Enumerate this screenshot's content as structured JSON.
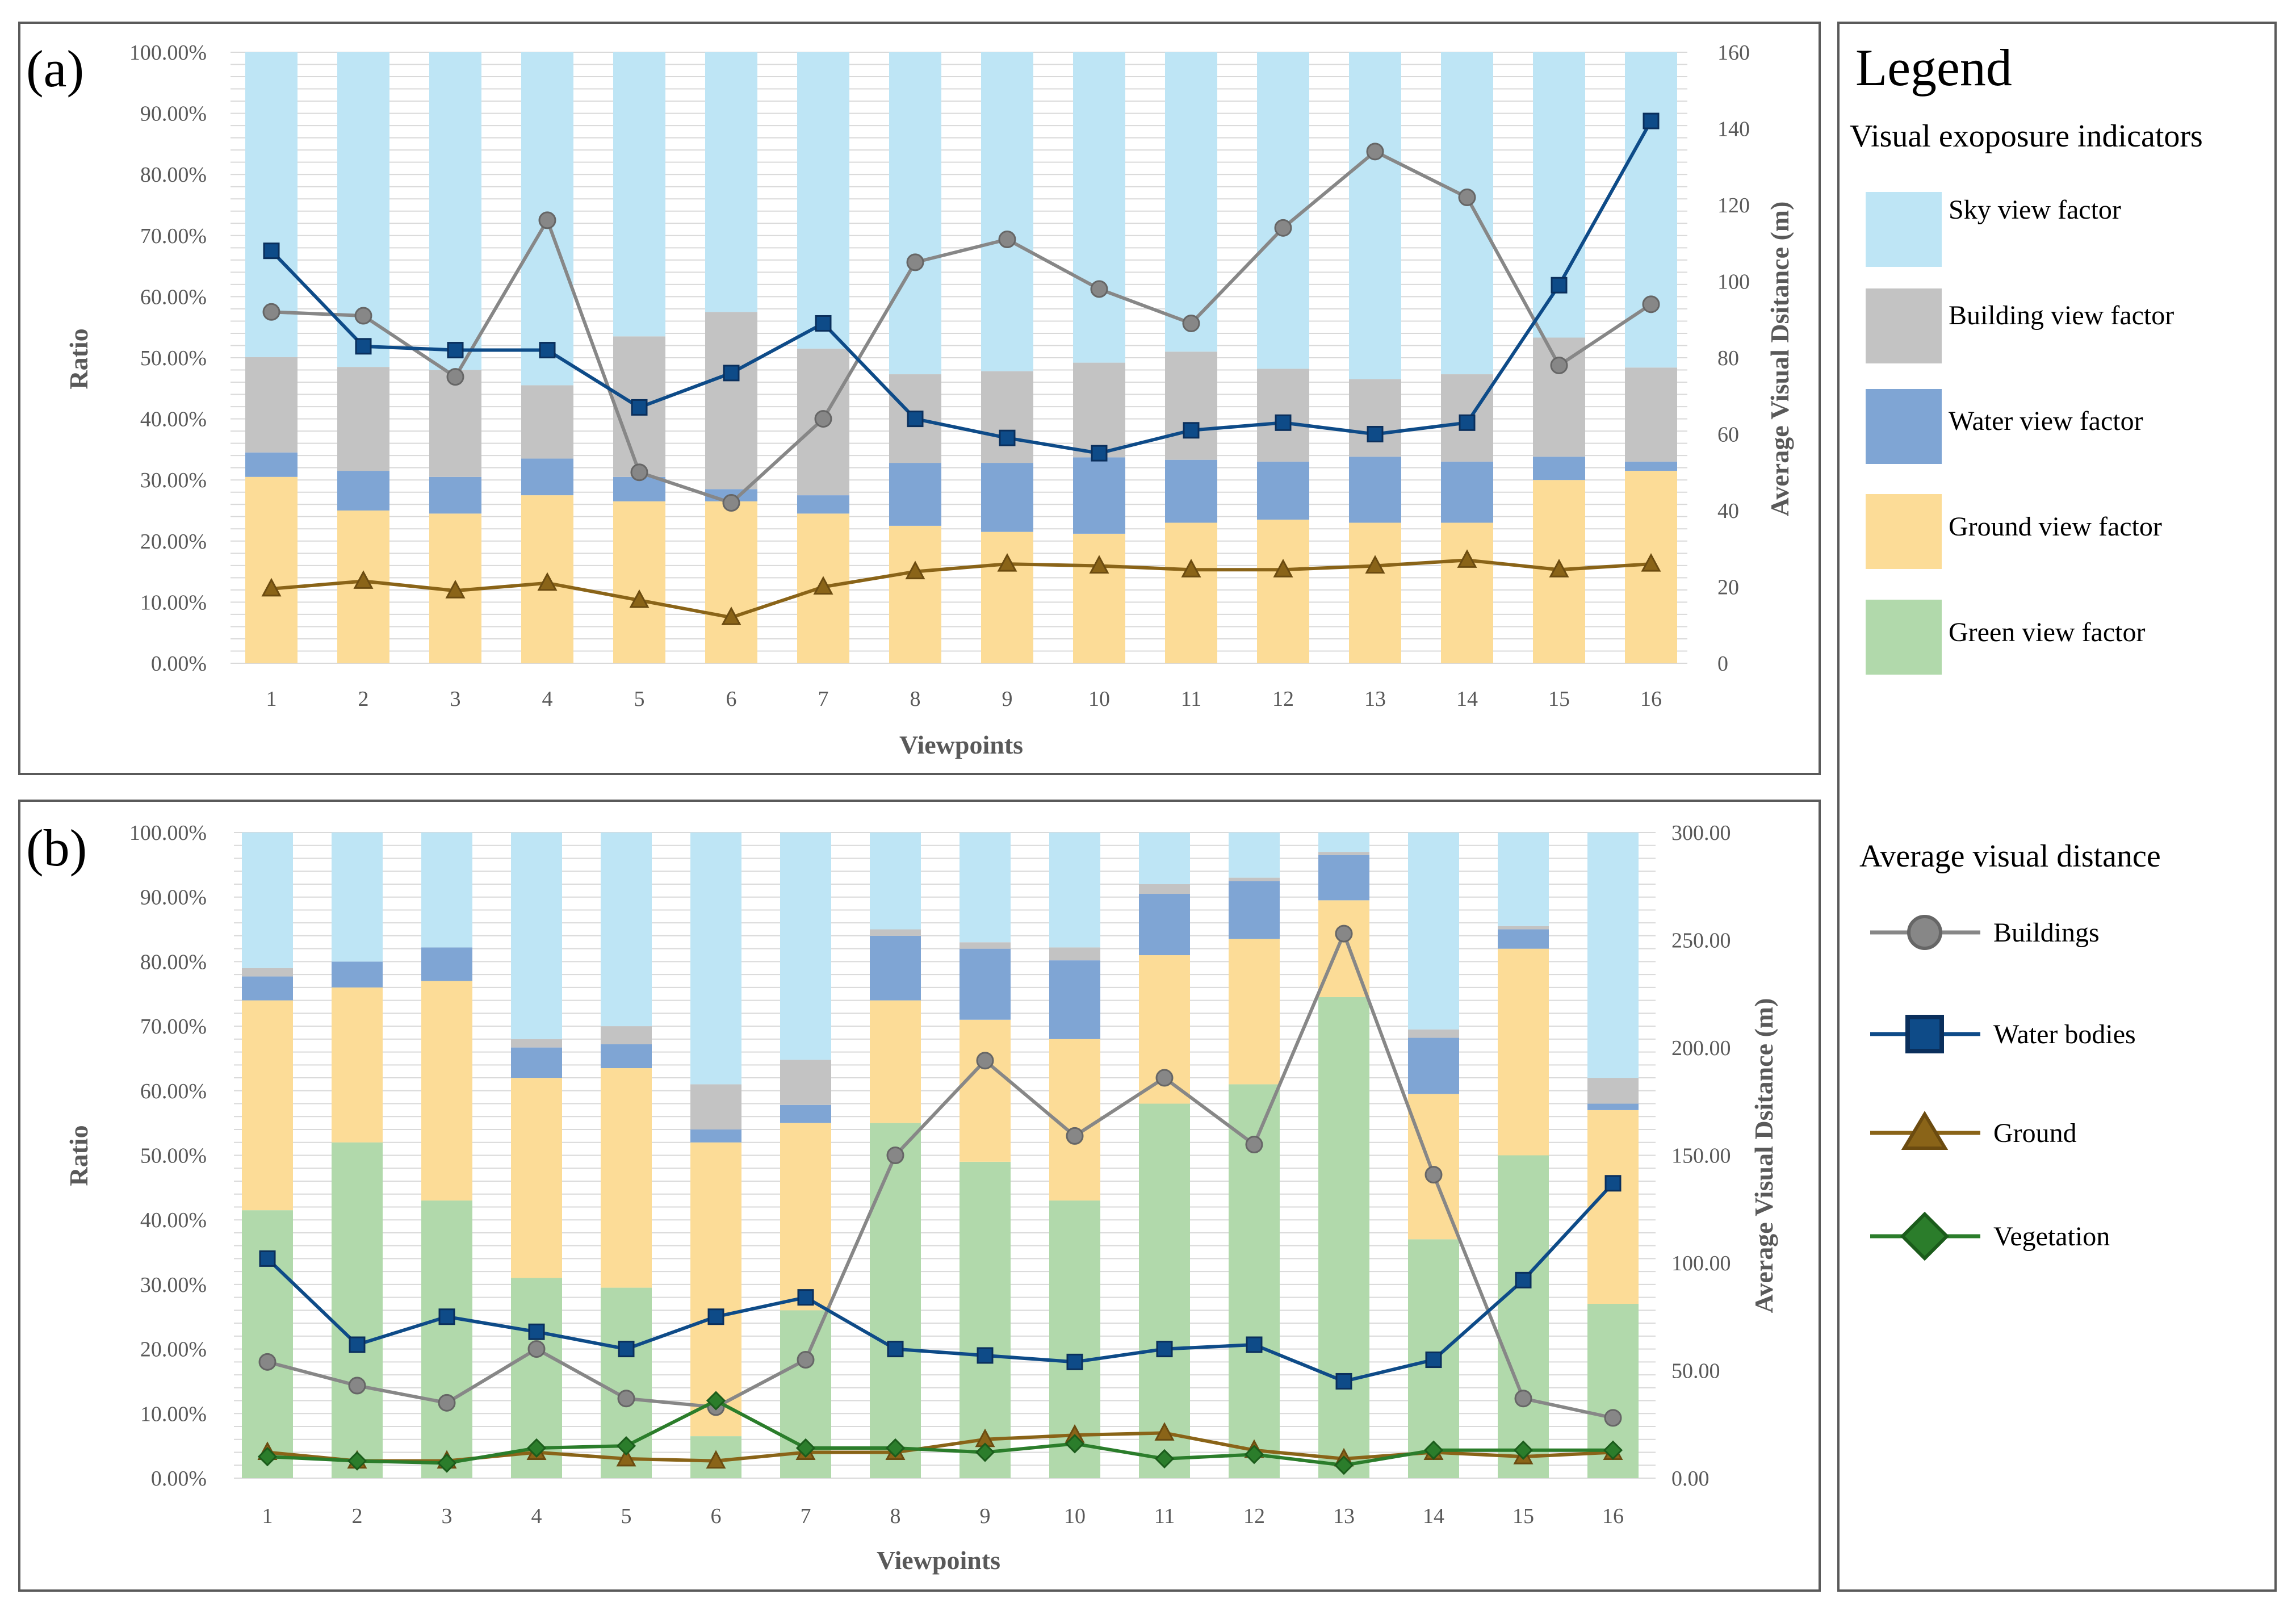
{
  "colors": {
    "sky": "#bee5f5",
    "building": "#c3c3c3",
    "water": "#7fa5d4",
    "ground": "#fcdc97",
    "green": "#b1d9ab",
    "line_buildings": "#878787",
    "line_water": "#0e4b88",
    "line_ground": "#8a6418",
    "line_vegetation": "#2b7d2b"
  },
  "legend": {
    "title": "Legend",
    "section1_title": "Visual exoposure indicators",
    "factors": [
      {
        "label": "Sky view factor",
        "color": "#bee5f5"
      },
      {
        "label": "Building view factor",
        "color": "#c3c3c3"
      },
      {
        "label": "Water view factor",
        "color": "#7fa5d4"
      },
      {
        "label": "Ground view factor",
        "color": "#fcdc97"
      },
      {
        "label": "Green view factor",
        "color": "#b1d9ab"
      }
    ],
    "section2_title": "Average visual distance",
    "lines": [
      {
        "label": "Buildings",
        "marker": "circle",
        "color": "#878787"
      },
      {
        "label": "Water bodies",
        "marker": "square",
        "color": "#0e4b88"
      },
      {
        "label": "Ground",
        "marker": "triangle",
        "color": "#8a6418"
      },
      {
        "label": "Vegetation",
        "marker": "diamond",
        "color": "#2b7d2b"
      }
    ]
  },
  "chart_data": [
    {
      "panel_label": "(a)",
      "type": "bar",
      "stacked": true,
      "xlabel": "Viewpoints",
      "ylabel": "Ratio",
      "y2label": "Average Visual Dsitance (m)",
      "categories": [
        "1",
        "2",
        "3",
        "4",
        "5",
        "6",
        "7",
        "8",
        "9",
        "10",
        "11",
        "12",
        "13",
        "14",
        "15",
        "16"
      ],
      "ylim": [
        0,
        100
      ],
      "yticks": [
        "0.00%",
        "10.00%",
        "20.00%",
        "30.00%",
        "40.00%",
        "50.00%",
        "60.00%",
        "70.00%",
        "80.00%",
        "90.00%",
        "100.00%"
      ],
      "y2lim": [
        0,
        160
      ],
      "y2ticks": [
        "0",
        "20",
        "40",
        "60",
        "80",
        "100",
        "120",
        "140",
        "160"
      ],
      "series": [
        {
          "name": "Ground view factor",
          "color": "#fcdc97",
          "values": [
            30.5,
            25,
            24.5,
            27.5,
            26.5,
            26.5,
            24.5,
            22.5,
            21.5,
            21.2,
            23,
            23.5,
            23,
            23,
            30,
            31.5
          ]
        },
        {
          "name": "Water view factor",
          "color": "#7fa5d4",
          "values": [
            4,
            6.5,
            6,
            6,
            4,
            2,
            3,
            10.3,
            11.3,
            12.5,
            10.3,
            9.5,
            10.8,
            10,
            3.8,
            1.5
          ]
        },
        {
          "name": "Building view factor",
          "color": "#c3c3c3",
          "values": [
            15.6,
            17,
            17.5,
            12,
            23,
            29,
            24,
            14.5,
            15,
            15.5,
            17.7,
            15.2,
            12.7,
            14.3,
            19.5,
            15.4
          ]
        },
        {
          "name": "Sky view factor",
          "color": "#bee5f5",
          "values": [
            49.9,
            51.5,
            52,
            54.5,
            46.5,
            42.5,
            48.5,
            52.7,
            52.2,
            50.8,
            49,
            51.8,
            53.5,
            52.7,
            46.7,
            51.6
          ]
        }
      ],
      "lines": [
        {
          "name": "Buildings",
          "marker": "circle",
          "color": "#878787",
          "values": [
            92,
            91,
            75,
            116,
            50,
            42,
            64,
            105,
            111,
            98,
            89,
            114,
            134,
            122,
            78,
            94
          ]
        },
        {
          "name": "Water bodies",
          "marker": "square",
          "color": "#0e4b88",
          "values": [
            108,
            83,
            82,
            82,
            67,
            76,
            89,
            64,
            59,
            55,
            61,
            63,
            60,
            63,
            99,
            142
          ]
        },
        {
          "name": "Ground",
          "marker": "triangle",
          "color": "#8a6418",
          "values": [
            19.5,
            21.5,
            19,
            21,
            16.5,
            12,
            20,
            24,
            26,
            25.5,
            24.5,
            24.5,
            25.5,
            27,
            24.5,
            26
          ]
        }
      ]
    },
    {
      "panel_label": "(b)",
      "type": "bar",
      "stacked": true,
      "xlabel": "Viewpoints",
      "ylabel": "Ratio",
      "y2label": "Average Visual Dsitance (m)",
      "categories": [
        "1",
        "2",
        "3",
        "4",
        "5",
        "6",
        "7",
        "8",
        "9",
        "10",
        "11",
        "12",
        "13",
        "14",
        "15",
        "16"
      ],
      "ylim": [
        0,
        100
      ],
      "yticks": [
        "0.00%",
        "10.00%",
        "20.00%",
        "30.00%",
        "40.00%",
        "50.00%",
        "60.00%",
        "70.00%",
        "80.00%",
        "90.00%",
        "100.00%"
      ],
      "y2lim": [
        0,
        300
      ],
      "y2ticks": [
        "0.00",
        "50.00",
        "100.00",
        "150.00",
        "200.00",
        "250.00",
        "300.00"
      ],
      "series": [
        {
          "name": "Green view factor",
          "color": "#b1d9ab",
          "values": [
            41.5,
            52,
            43,
            31,
            29.5,
            6.5,
            26,
            55,
            49,
            43,
            58,
            61,
            74.5,
            37,
            50,
            27
          ]
        },
        {
          "name": "Ground view factor",
          "color": "#fcdc97",
          "values": [
            32.5,
            24,
            34,
            31,
            34,
            45.5,
            29,
            19,
            22,
            25,
            23,
            22.5,
            15,
            22.5,
            32,
            30
          ]
        },
        {
          "name": "Water view factor",
          "color": "#7fa5d4",
          "values": [
            3.7,
            4,
            5.2,
            4.7,
            3.7,
            2,
            2.8,
            10,
            11,
            12.2,
            9.5,
            9,
            7,
            8.7,
            3,
            1
          ]
        },
        {
          "name": "Building view factor",
          "color": "#c3c3c3",
          "values": [
            1.3,
            0,
            0,
            1.3,
            2.8,
            7,
            7,
            1,
            1,
            2,
            1.5,
            0.5,
            0.5,
            1.3,
            0.5,
            4
          ]
        },
        {
          "name": "Sky view factor",
          "color": "#bee5f5",
          "values": [
            21,
            20,
            17.8,
            32,
            30,
            39,
            35.2,
            15,
            17,
            17.8,
            8,
            7,
            3,
            30.5,
            14.5,
            38
          ]
        }
      ],
      "lines": [
        {
          "name": "Buildings",
          "marker": "circle",
          "color": "#878787",
          "values": [
            54,
            43,
            35,
            60,
            37,
            33,
            55,
            150,
            194,
            159,
            186,
            155,
            253,
            141,
            37,
            28
          ]
        },
        {
          "name": "Water bodies",
          "marker": "square",
          "color": "#0e4b88",
          "values": [
            102,
            62,
            75,
            68,
            60,
            75,
            84,
            60,
            57,
            54,
            60,
            62,
            45,
            55,
            92,
            137
          ]
        },
        {
          "name": "Ground",
          "marker": "triangle",
          "color": "#8a6418",
          "values": [
            12,
            8,
            8,
            12,
            9,
            8,
            12,
            12,
            18,
            20,
            21,
            13,
            9,
            12,
            10,
            12
          ]
        },
        {
          "name": "Vegetation",
          "marker": "diamond",
          "color": "#2b7d2b",
          "values": [
            10,
            8,
            7,
            14,
            15,
            36,
            14,
            14,
            12,
            16,
            9,
            11,
            6,
            13,
            13,
            13
          ]
        }
      ]
    }
  ]
}
